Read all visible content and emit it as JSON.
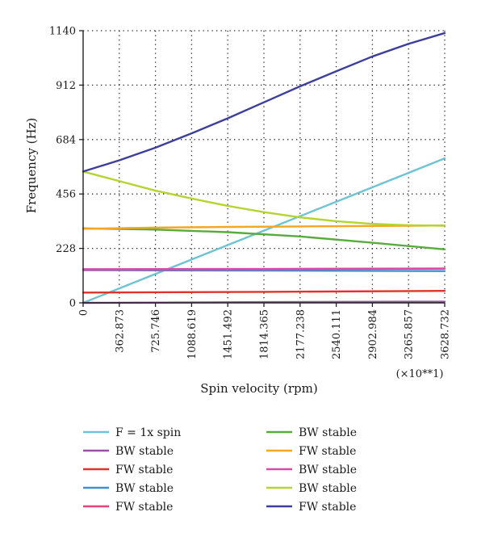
{
  "chart_data": {
    "type": "line",
    "xlabel": "Spin velocity (rpm)",
    "ylabel": "Frequency (Hz)",
    "x_multiplier": "(×10**1)",
    "xlim": [
      0,
      3628.732
    ],
    "ylim": [
      0,
      1140
    ],
    "xticks": [
      "0",
      "362.873",
      "725.746",
      "1088.619",
      "1451.492",
      "1814.365",
      "2177.238",
      "2540.111",
      "2902.984",
      "3265.857",
      "3628.732"
    ],
    "yticks": [
      "0",
      "228",
      "456",
      "684",
      "912",
      "1140"
    ],
    "grid": true,
    "legend_position": "bottom",
    "series": [
      {
        "name": "F = 1x spin",
        "color": "#6ec3d4",
        "x": [
          0,
          3628.732
        ],
        "y": [
          0,
          605
        ]
      },
      {
        "name": "BW stable",
        "color": "#9b4fa6",
        "x": [
          0,
          1814.365,
          3628.732
        ],
        "y": [
          0,
          3,
          5
        ]
      },
      {
        "name": "FW stable",
        "color": "#e0332b",
        "x": [
          0,
          1814.365,
          3628.732
        ],
        "y": [
          43,
          46,
          50
        ]
      },
      {
        "name": "BW stable",
        "color": "#3f8fd2",
        "x": [
          0,
          1814.365,
          3628.732
        ],
        "y": [
          137,
          135,
          133
        ]
      },
      {
        "name": "FW stable",
        "color": "#e8407a",
        "x": [
          0,
          1814.365,
          3628.732
        ],
        "y": [
          139,
          141,
          143
        ]
      },
      {
        "name": "BW stable",
        "color": "#5aab3e",
        "x": [
          0,
          725.746,
          1451.492,
          2177.238,
          2902.984,
          3628.732
        ],
        "y": [
          312,
          307,
          296,
          278,
          252,
          224
        ]
      },
      {
        "name": "FW stable",
        "color": "#f5a623",
        "x": [
          0,
          725.746,
          1451.492,
          2177.238,
          2902.984,
          3628.732
        ],
        "y": [
          310,
          315,
          318,
          320,
          322,
          324
        ]
      },
      {
        "name": "BW stable",
        "color": "#d84aa8",
        "x": [
          0,
          1814.365,
          3628.732
        ],
        "y": [
          141,
          142,
          144
        ]
      },
      {
        "name": "BW stable",
        "color": "#b5d432",
        "x": [
          0,
          362.873,
          725.746,
          1088.619,
          1451.492,
          1814.365,
          2177.238,
          2540.111,
          2902.984,
          3265.857,
          3628.732
        ],
        "y": [
          550,
          510,
          470,
          437,
          406,
          380,
          358,
          342,
          331,
          325,
          323
        ]
      },
      {
        "name": "FW stable",
        "color": "#3d3f9a",
        "x": [
          0,
          362.873,
          725.746,
          1088.619,
          1451.492,
          1814.365,
          2177.238,
          2540.111,
          2902.984,
          3265.857,
          3628.732
        ],
        "y": [
          550,
          597,
          650,
          710,
          773,
          840,
          907,
          970,
          1032,
          1085,
          1130
        ]
      }
    ]
  }
}
